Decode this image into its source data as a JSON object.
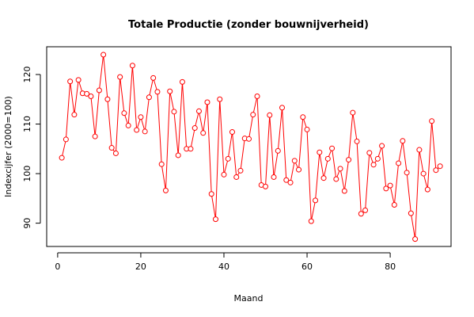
{
  "chart_data": {
    "type": "line",
    "title": "Totale Productie (zonder bouwnijverheid)",
    "xlabel": "Maand",
    "ylabel": "Indexcijfer (2000=100)",
    "xlim": [
      -2.64,
      94.64
    ],
    "ylim": [
      85.3,
      125.6
    ],
    "x_ticks": [
      0,
      20,
      40,
      60,
      80
    ],
    "y_ticks": [
      90,
      100,
      110,
      120
    ],
    "grid": false,
    "series": [
      {
        "color": "#ff0000",
        "marker": "open-circle",
        "x": [
          1,
          2,
          3,
          4,
          5,
          6,
          7,
          8,
          9,
          10,
          11,
          12,
          13,
          14,
          15,
          16,
          17,
          18,
          19,
          20,
          21,
          22,
          23,
          24,
          25,
          26,
          27,
          28,
          29,
          30,
          31,
          32,
          33,
          34,
          35,
          36,
          37,
          38,
          39,
          40,
          41,
          42,
          43,
          44,
          45,
          46,
          47,
          48,
          49,
          50,
          51,
          52,
          53,
          54,
          55,
          56,
          57,
          58,
          59,
          60,
          61,
          62,
          63,
          64,
          65,
          66,
          67,
          68,
          69,
          70,
          71,
          72,
          73,
          74,
          75,
          76,
          77,
          78,
          79,
          80,
          81,
          82,
          83,
          84,
          85,
          86,
          87,
          88,
          89,
          90,
          91,
          92
        ],
        "values": [
          103.2,
          106.9,
          118.6,
          111.9,
          118.9,
          116.2,
          116.1,
          115.6,
          107.5,
          116.8,
          124.0,
          115.0,
          105.2,
          104.1,
          119.5,
          112.2,
          109.7,
          121.8,
          108.8,
          111.4,
          108.5,
          115.4,
          119.3,
          116.5,
          101.9,
          96.6,
          116.6,
          112.5,
          103.7,
          118.5,
          105.0,
          105.0,
          109.2,
          112.6,
          108.2,
          114.4,
          95.9,
          90.8,
          115.0,
          99.8,
          103.0,
          108.4,
          99.3,
          100.6,
          107.1,
          107.0,
          111.9,
          115.6,
          97.7,
          97.4,
          111.8,
          99.3,
          104.6,
          113.3,
          98.7,
          98.2,
          102.6,
          100.8,
          111.4,
          108.9,
          90.4,
          94.6,
          104.3,
          99.1,
          103.0,
          105.1,
          98.9,
          101.0,
          96.5,
          102.8,
          112.3,
          106.5,
          91.9,
          92.6,
          104.2,
          101.8,
          103.0,
          105.6,
          97.0,
          97.6,
          93.7,
          102.1,
          106.6,
          100.2,
          92.0,
          86.8,
          104.8,
          100.0,
          96.8,
          110.6,
          100.7,
          101.5
        ]
      }
    ]
  }
}
